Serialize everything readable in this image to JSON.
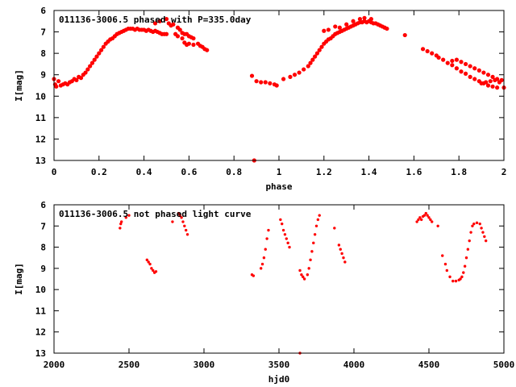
{
  "chart_data": [
    {
      "type": "scatter",
      "title": "011136-3006.5 phased with P=335.0day",
      "xlabel": "phase",
      "ylabel": "I[mag]",
      "xlim": [
        0,
        2
      ],
      "ylim": [
        13,
        6
      ],
      "y_inverted": true,
      "grid": false,
      "marker_color": "#ff0000",
      "xticks": [
        "0",
        "0.2",
        "0.4",
        "0.6",
        "0.8",
        "1",
        "1.2",
        "1.4",
        "1.6",
        "1.8",
        "2"
      ],
      "xtick_values": [
        0,
        0.2,
        0.4,
        0.6,
        0.8,
        1.0,
        1.2,
        1.4,
        1.6,
        1.8,
        2.0
      ],
      "yticks": [
        "6",
        "7",
        "8",
        "9",
        "10",
        "11",
        "12",
        "13"
      ],
      "ytick_values": [
        6,
        7,
        8,
        9,
        10,
        11,
        12,
        13
      ],
      "series": [
        {
          "points": [
            [
              0.0,
              9.2
            ],
            [
              0.005,
              9.45
            ],
            [
              0.01,
              9.55
            ],
            [
              0.02,
              9.3
            ],
            [
              0.03,
              9.5
            ],
            [
              0.04,
              9.45
            ],
            [
              0.05,
              9.4
            ],
            [
              0.06,
              9.45
            ],
            [
              0.07,
              9.35
            ],
            [
              0.08,
              9.3
            ],
            [
              0.09,
              9.2
            ],
            [
              0.1,
              9.25
            ],
            [
              0.11,
              9.1
            ],
            [
              0.12,
              9.15
            ],
            [
              0.13,
              9.0
            ],
            [
              0.14,
              8.9
            ],
            [
              0.15,
              8.75
            ],
            [
              0.16,
              8.6
            ],
            [
              0.17,
              8.45
            ],
            [
              0.18,
              8.3
            ],
            [
              0.19,
              8.15
            ],
            [
              0.2,
              8.0
            ],
            [
              0.21,
              7.85
            ],
            [
              0.22,
              7.7
            ],
            [
              0.23,
              7.55
            ],
            [
              0.24,
              7.45
            ],
            [
              0.25,
              7.35
            ],
            [
              0.26,
              7.3
            ],
            [
              0.27,
              7.2
            ],
            [
              0.28,
              7.1
            ],
            [
              0.29,
              7.05
            ],
            [
              0.3,
              7.0
            ],
            [
              0.31,
              6.95
            ],
            [
              0.32,
              6.9
            ],
            [
              0.33,
              6.85
            ],
            [
              0.34,
              6.85
            ],
            [
              0.35,
              6.85
            ],
            [
              0.36,
              6.9
            ],
            [
              0.37,
              6.85
            ],
            [
              0.38,
              6.9
            ],
            [
              0.39,
              6.9
            ],
            [
              0.4,
              6.9
            ],
            [
              0.41,
              6.95
            ],
            [
              0.42,
              6.9
            ],
            [
              0.43,
              6.95
            ],
            [
              0.44,
              7.0
            ],
            [
              0.45,
              6.95
            ],
            [
              0.46,
              7.0
            ],
            [
              0.47,
              7.05
            ],
            [
              0.48,
              7.1
            ],
            [
              0.49,
              7.1
            ],
            [
              0.5,
              7.1
            ],
            [
              0.45,
              6.6
            ],
            [
              0.47,
              6.5
            ],
            [
              0.5,
              6.4
            ],
            [
              0.51,
              6.6
            ],
            [
              0.52,
              6.7
            ],
            [
              0.53,
              6.65
            ],
            [
              0.55,
              6.8
            ],
            [
              0.56,
              6.9
            ],
            [
              0.57,
              7.05
            ],
            [
              0.58,
              7.1
            ],
            [
              0.59,
              7.1
            ],
            [
              0.6,
              7.2
            ],
            [
              0.61,
              7.25
            ],
            [
              0.62,
              7.3
            ],
            [
              0.6,
              7.55
            ],
            [
              0.62,
              7.6
            ],
            [
              0.64,
              7.55
            ],
            [
              0.65,
              7.65
            ],
            [
              0.66,
              7.7
            ],
            [
              0.67,
              7.8
            ],
            [
              0.68,
              7.85
            ],
            [
              0.54,
              7.1
            ],
            [
              0.55,
              7.2
            ],
            [
              0.57,
              7.3
            ],
            [
              0.58,
              7.5
            ],
            [
              0.59,
              7.6
            ],
            [
              0.88,
              9.05
            ],
            [
              0.9,
              9.3
            ],
            [
              0.92,
              9.35
            ],
            [
              0.94,
              9.35
            ],
            [
              0.96,
              9.4
            ],
            [
              0.98,
              9.45
            ],
            [
              0.99,
              9.5
            ],
            [
              0.89,
              13.0
            ],
            [
              1.02,
              9.2
            ],
            [
              1.05,
              9.1
            ],
            [
              1.07,
              9.0
            ],
            [
              1.09,
              8.9
            ],
            [
              1.11,
              8.75
            ],
            [
              1.13,
              8.6
            ],
            [
              1.14,
              8.45
            ],
            [
              1.15,
              8.3
            ],
            [
              1.16,
              8.15
            ],
            [
              1.17,
              8.0
            ],
            [
              1.18,
              7.85
            ],
            [
              1.19,
              7.7
            ],
            [
              1.2,
              7.55
            ],
            [
              1.21,
              7.45
            ],
            [
              1.22,
              7.35
            ],
            [
              1.23,
              7.3
            ],
            [
              1.24,
              7.2
            ],
            [
              1.25,
              7.1
            ],
            [
              1.26,
              7.05
            ],
            [
              1.27,
              7.0
            ],
            [
              1.28,
              6.95
            ],
            [
              1.29,
              6.9
            ],
            [
              1.3,
              6.85
            ],
            [
              1.31,
              6.8
            ],
            [
              1.32,
              6.75
            ],
            [
              1.33,
              6.7
            ],
            [
              1.34,
              6.65
            ],
            [
              1.35,
              6.6
            ],
            [
              1.36,
              6.55
            ],
            [
              1.37,
              6.55
            ],
            [
              1.38,
              6.5
            ],
            [
              1.39,
              6.55
            ],
            [
              1.4,
              6.5
            ],
            [
              1.41,
              6.55
            ],
            [
              1.42,
              6.6
            ],
            [
              1.43,
              6.6
            ],
            [
              1.44,
              6.65
            ],
            [
              1.45,
              6.7
            ],
            [
              1.46,
              6.75
            ],
            [
              1.47,
              6.8
            ],
            [
              1.48,
              6.85
            ],
            [
              1.2,
              6.95
            ],
            [
              1.22,
              6.9
            ],
            [
              1.25,
              6.75
            ],
            [
              1.27,
              6.8
            ],
            [
              1.3,
              6.65
            ],
            [
              1.33,
              6.5
            ],
            [
              1.36,
              6.4
            ],
            [
              1.38,
              6.35
            ],
            [
              1.41,
              6.4
            ],
            [
              1.56,
              7.15
            ],
            [
              1.64,
              7.8
            ],
            [
              1.66,
              7.9
            ],
            [
              1.68,
              8.0
            ],
            [
              1.7,
              8.1
            ],
            [
              1.71,
              8.2
            ],
            [
              1.73,
              8.3
            ],
            [
              1.75,
              8.45
            ],
            [
              1.77,
              8.55
            ],
            [
              1.79,
              8.7
            ],
            [
              1.81,
              8.85
            ],
            [
              1.83,
              8.95
            ],
            [
              1.85,
              9.1
            ],
            [
              1.87,
              9.2
            ],
            [
              1.89,
              9.3
            ],
            [
              1.91,
              9.4
            ],
            [
              1.93,
              9.5
            ],
            [
              1.95,
              9.55
            ],
            [
              1.97,
              9.6
            ],
            [
              2.0,
              9.6
            ],
            [
              1.77,
              8.35
            ],
            [
              1.79,
              8.3
            ],
            [
              1.81,
              8.4
            ],
            [
              1.83,
              8.5
            ],
            [
              1.85,
              8.6
            ],
            [
              1.87,
              8.7
            ],
            [
              1.89,
              8.8
            ],
            [
              1.91,
              8.9
            ],
            [
              1.93,
              9.0
            ],
            [
              1.95,
              9.1
            ],
            [
              1.97,
              9.2
            ],
            [
              1.99,
              9.25
            ],
            [
              1.9,
              9.4
            ],
            [
              1.92,
              9.35
            ],
            [
              1.94,
              9.3
            ],
            [
              1.96,
              9.25
            ],
            [
              1.98,
              9.35
            ]
          ]
        }
      ]
    },
    {
      "type": "scatter",
      "title": "011136-3006.5 not phased light curve",
      "xlabel": "hjd0",
      "ylabel": "I[mag]",
      "xlim": [
        2000,
        5000
      ],
      "ylim": [
        13,
        6
      ],
      "y_inverted": true,
      "grid": false,
      "marker_color": "#ff0000",
      "xticks": [
        "2000",
        "2500",
        "3000",
        "3500",
        "4000",
        "4500",
        "5000"
      ],
      "xtick_values": [
        2000,
        2500,
        3000,
        3500,
        4000,
        4500,
        5000
      ],
      "yticks": [
        "6",
        "7",
        "8",
        "9",
        "10",
        "11",
        "12",
        "13"
      ],
      "ytick_values": [
        6,
        7,
        8,
        9,
        10,
        11,
        12,
        13
      ],
      "series": [
        {
          "points": [
            [
              2440,
              7.1
            ],
            [
              2445,
              6.9
            ],
            [
              2450,
              6.8
            ],
            [
              2480,
              6.6
            ],
            [
              2500,
              6.5
            ],
            [
              2790,
              6.8
            ],
            [
              2830,
              6.4
            ],
            [
              2840,
              6.5
            ],
            [
              2850,
              6.6
            ],
            [
              2860,
              6.8
            ],
            [
              2870,
              7.0
            ],
            [
              2880,
              7.2
            ],
            [
              2890,
              7.4
            ],
            [
              2620,
              8.6
            ],
            [
              2630,
              8.7
            ],
            [
              2640,
              8.8
            ],
            [
              2650,
              9.0
            ],
            [
              2660,
              9.1
            ],
            [
              2670,
              9.2
            ],
            [
              2680,
              9.15
            ],
            [
              3320,
              9.3
            ],
            [
              3330,
              9.35
            ],
            [
              3380,
              9.0
            ],
            [
              3390,
              8.8
            ],
            [
              3400,
              8.5
            ],
            [
              3410,
              8.1
            ],
            [
              3420,
              7.6
            ],
            [
              3430,
              7.2
            ],
            [
              3510,
              6.7
            ],
            [
              3520,
              6.9
            ],
            [
              3530,
              7.2
            ],
            [
              3540,
              7.4
            ],
            [
              3550,
              7.6
            ],
            [
              3560,
              7.8
            ],
            [
              3570,
              8.0
            ],
            [
              3640,
              9.1
            ],
            [
              3650,
              9.3
            ],
            [
              3660,
              9.4
            ],
            [
              3670,
              9.5
            ],
            [
              3690,
              9.3
            ],
            [
              3700,
              9.0
            ],
            [
              3710,
              8.6
            ],
            [
              3720,
              8.2
            ],
            [
              3730,
              7.8
            ],
            [
              3740,
              7.4
            ],
            [
              3750,
              7.0
            ],
            [
              3760,
              6.7
            ],
            [
              3770,
              6.5
            ],
            [
              3870,
              7.1
            ],
            [
              3900,
              7.9
            ],
            [
              3910,
              8.1
            ],
            [
              3920,
              8.3
            ],
            [
              3930,
              8.5
            ],
            [
              3940,
              8.7
            ],
            [
              3640,
              13.0
            ],
            [
              4420,
              6.8
            ],
            [
              4430,
              6.7
            ],
            [
              4440,
              6.6
            ],
            [
              4450,
              6.7
            ],
            [
              4460,
              6.55
            ],
            [
              4470,
              6.5
            ],
            [
              4480,
              6.4
            ],
            [
              4490,
              6.5
            ],
            [
              4500,
              6.6
            ],
            [
              4510,
              6.7
            ],
            [
              4520,
              6.8
            ],
            [
              4560,
              7.0
            ],
            [
              4590,
              8.4
            ],
            [
              4610,
              8.8
            ],
            [
              4620,
              9.1
            ],
            [
              4640,
              9.4
            ],
            [
              4660,
              9.6
            ],
            [
              4680,
              9.6
            ],
            [
              4700,
              9.55
            ],
            [
              4710,
              9.5
            ],
            [
              4720,
              9.4
            ],
            [
              4730,
              9.2
            ],
            [
              4740,
              8.9
            ],
            [
              4750,
              8.5
            ],
            [
              4760,
              8.1
            ],
            [
              4770,
              7.7
            ],
            [
              4780,
              7.3
            ],
            [
              4790,
              7.0
            ],
            [
              4800,
              6.9
            ],
            [
              4820,
              6.85
            ],
            [
              4840,
              6.9
            ],
            [
              4850,
              7.1
            ],
            [
              4860,
              7.3
            ],
            [
              4870,
              7.5
            ],
            [
              4880,
              7.7
            ]
          ]
        }
      ]
    }
  ]
}
